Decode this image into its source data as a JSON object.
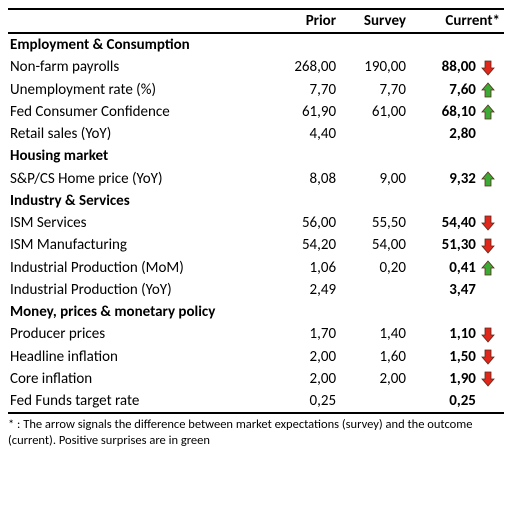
{
  "columns": {
    "prior": "Prior",
    "survey": "Survey",
    "current": "Current*"
  },
  "colors": {
    "up": "#3daa35",
    "down": "#e1261c",
    "stroke": "#5a2a1a"
  },
  "sections": [
    {
      "title": "Employment & Consumption",
      "rows": [
        {
          "label": "Non-farm payrolls",
          "prior": "268,00",
          "survey": "190,00",
          "current": "88,00",
          "dir": "down"
        },
        {
          "label": "Unemployment rate (%)",
          "prior": "7,70",
          "survey": "7,70",
          "current": "7,60",
          "dir": "up"
        },
        {
          "label": "Fed Consumer Confidence",
          "prior": "61,90",
          "survey": "61,00",
          "current": "68,10",
          "dir": "up"
        },
        {
          "label": "Retail sales (YoY)",
          "prior": "4,40",
          "survey": "",
          "current": "2,80",
          "dir": ""
        }
      ]
    },
    {
      "title": "Housing market",
      "rows": [
        {
          "label": "S&P/CS Home price (YoY)",
          "prior": "8,08",
          "survey": "9,00",
          "current": "9,32",
          "dir": "up"
        }
      ]
    },
    {
      "title": "Industry & Services",
      "rows": [
        {
          "label": "ISM Services",
          "prior": "56,00",
          "survey": "55,50",
          "current": "54,40",
          "dir": "down"
        },
        {
          "label": "ISM Manufacturing",
          "prior": "54,20",
          "survey": "54,00",
          "current": "51,30",
          "dir": "down"
        },
        {
          "label": "Industrial Production (MoM)",
          "prior": "1,06",
          "survey": "0,20",
          "current": "0,41",
          "dir": "up"
        },
        {
          "label": "Industrial Production (YoY)",
          "prior": "2,49",
          "survey": "",
          "current": "3,47",
          "dir": ""
        }
      ]
    },
    {
      "title": "Money, prices & monetary policy",
      "rows": [
        {
          "label": "Producer prices",
          "prior": "1,70",
          "survey": "1,40",
          "current": "1,10",
          "dir": "down"
        },
        {
          "label": "Headline inflation",
          "prior": "2,00",
          "survey": "1,60",
          "current": "1,50",
          "dir": "down"
        },
        {
          "label": "Core inflation",
          "prior": "2,00",
          "survey": "2,00",
          "current": "1,90",
          "dir": "down"
        },
        {
          "label": "Fed Funds target rate",
          "prior": "0,25",
          "survey": "",
          "current": "0,25",
          "dir": ""
        }
      ]
    }
  ],
  "footnote": "* : The arrow signals the difference between market expectations (survey) and the outcome (current). Positive surprises are in green"
}
